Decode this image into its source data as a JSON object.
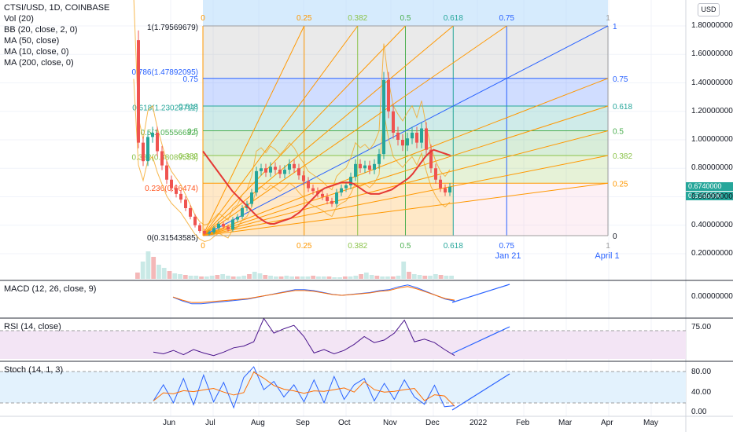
{
  "header": {
    "symbol": "CTSI/USD, 1D, COINBASE",
    "studies": [
      "Vol (20)",
      "BB (20, close, 2, 0)",
      "MA (50, close)",
      "MA (10, close, 0)",
      "MA (200, close, 0)"
    ]
  },
  "currency_button": "USD",
  "colors": {
    "up": "#26a69a",
    "down": "#ef5350",
    "ma": "#e53935",
    "bb": "#f5a623",
    "fib_line": "#2962ff",
    "fan": "#ff9800",
    "rsi_band": "#f3e5f5",
    "stoch_band": "#e3f2fd"
  },
  "price_tags": [
    "0.6740000",
    "0.6365000"
  ],
  "chart_data": [
    {
      "type": "candlestick",
      "title": "CTSI/USD, 1D, COINBASE",
      "y_ticks": [
        "1.80000000",
        "1.60000000",
        "1.40000000",
        "1.20000000",
        "1.00000000",
        "0.80000000",
        "0.60000000",
        "0.40000000",
        "0.20000000"
      ],
      "y_scale": "linear",
      "x_ticks": [
        "Jun",
        "Jul",
        "Aug",
        "Sep",
        "Oct",
        "Nov",
        "Dec",
        "2022",
        "Feb",
        "Mar",
        "Apr",
        "May"
      ],
      "close_series": [
        1.7,
        0.98,
        0.85,
        1.02,
        1.05,
        0.92,
        0.82,
        0.72,
        0.66,
        0.62,
        0.58,
        0.52,
        0.46,
        0.4,
        0.36,
        0.34,
        0.35,
        0.38,
        0.41,
        0.39,
        0.37,
        0.44,
        0.46,
        0.52,
        0.55,
        0.63,
        0.78,
        0.8,
        0.77,
        0.81,
        0.79,
        0.76,
        0.79,
        0.83,
        0.8,
        0.75,
        0.71,
        0.66,
        0.64,
        0.62,
        0.6,
        0.57,
        0.55,
        0.63,
        0.66,
        0.68,
        0.74,
        0.83,
        0.8,
        0.82,
        0.79,
        0.83,
        0.9,
        1.42,
        1.2,
        1.05,
        1.0,
        0.96,
        1.01,
        1.05,
        0.98,
        1.08,
        0.93,
        0.8,
        0.72,
        0.66,
        0.63,
        0.67
      ],
      "ma_series": [
        0.92,
        0.88,
        0.84,
        0.8,
        0.76,
        0.72,
        0.68,
        0.64,
        0.61,
        0.58,
        0.55,
        0.52,
        0.49,
        0.46,
        0.44,
        0.42,
        0.41,
        0.41,
        0.42,
        0.43,
        0.44,
        0.45,
        0.47,
        0.49,
        0.52,
        0.55,
        0.58,
        0.61,
        0.64,
        0.66,
        0.67,
        0.68,
        0.69,
        0.7,
        0.7,
        0.7,
        0.69,
        0.67,
        0.65,
        0.63,
        0.62,
        0.62,
        0.62,
        0.63,
        0.64,
        0.65,
        0.67,
        0.69,
        0.71,
        0.73,
        0.76,
        0.8,
        0.84,
        0.88,
        0.91,
        0.93,
        0.92,
        0.91,
        0.9,
        0.89
      ],
      "fib_retracement": [
        {
          "label": "1(1.79569679)",
          "ratio": 1,
          "value": 1.79569679
        },
        {
          "label": "0.786(1.47892095)",
          "ratio": 0.786,
          "value": 1.47892095
        },
        {
          "label": "0.618(1.23023711)",
          "ratio": 0.618,
          "value": 1.23023711
        },
        {
          "label": "0.5(1.05556632)",
          "ratio": 0.5,
          "value": 1.05556632
        },
        {
          "label": "0.382(0.88089553)",
          "ratio": 0.382,
          "value": 0.88089553
        },
        {
          "label": "0.236(0.66474)",
          "ratio": 0.236,
          "value": 0.66474
        },
        {
          "label": "0(0.31543585)",
          "ratio": 0,
          "value": 0.31543585
        }
      ],
      "fib_grid_vertical_labels": [
        "0",
        "0.25",
        "0.382",
        "0.5",
        "0.618",
        "0.75",
        "1"
      ],
      "fib_grid_right_labels": [
        "1",
        "0.75",
        "0.618",
        "0.5",
        "0.382",
        "0.25",
        "0"
      ],
      "fib_inner_left_labels": [
        "0.75",
        "0.618",
        "0.5",
        "0.382"
      ],
      "time_annotations": [
        "Jan 21",
        "April 1"
      ]
    },
    {
      "type": "bar",
      "title": "Vol (20)",
      "values": [
        8,
        22,
        35,
        28,
        18,
        14,
        10,
        7,
        6,
        5,
        4,
        4,
        3,
        3,
        4,
        5,
        6,
        4,
        3,
        3,
        4,
        6,
        9,
        7,
        5,
        4,
        3,
        3,
        4,
        3,
        3,
        3,
        3,
        4,
        3,
        3,
        3,
        2,
        2,
        3,
        3,
        4,
        6,
        8,
        5,
        4,
        3,
        3,
        3,
        4,
        22,
        9,
        6,
        5,
        4,
        4,
        6,
        5,
        4,
        4
      ]
    },
    {
      "type": "line",
      "title": "MACD (12, 26, close, 9)",
      "y_ticks": [
        "0.00000000"
      ],
      "values": [
        -0.02,
        -0.06,
        -0.09,
        -0.09,
        -0.08,
        -0.07,
        -0.06,
        -0.05,
        -0.04,
        -0.02,
        0.0,
        0.02,
        0.04,
        0.06,
        0.06,
        0.05,
        0.03,
        0.01,
        0.0,
        0.01,
        0.02,
        0.03,
        0.05,
        0.06,
        0.09,
        0.11,
        0.08,
        0.04,
        0.0,
        -0.04,
        -0.06
      ]
    },
    {
      "type": "line",
      "title": "RSI (14, close)",
      "y_ticks": [
        "75.00"
      ],
      "values": [
        42,
        40,
        44,
        39,
        45,
        41,
        38,
        42,
        47,
        49,
        54,
        81,
        64,
        69,
        73,
        60,
        41,
        45,
        40,
        44,
        51,
        60,
        53,
        56,
        64,
        79,
        54,
        57,
        53,
        45,
        38
      ]
    },
    {
      "type": "line",
      "title": "Stoch (14, 1, 3)",
      "y_ticks": [
        "80.00",
        "40.00",
        "0.00"
      ],
      "values": [
        22,
        55,
        18,
        68,
        14,
        75,
        20,
        60,
        8,
        70,
        92,
        45,
        62,
        30,
        55,
        20,
        65,
        18,
        72,
        25,
        55,
        68,
        22,
        58,
        25,
        65,
        30,
        15,
        54,
        10,
        12
      ]
    }
  ]
}
